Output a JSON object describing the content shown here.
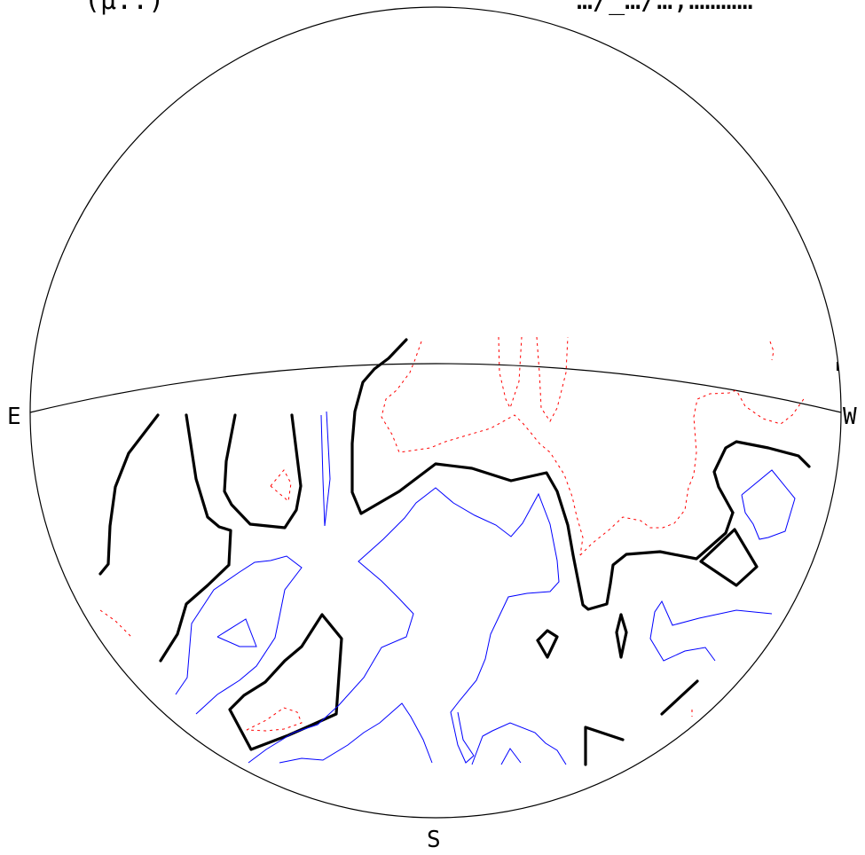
{
  "header": {
    "left_fragment": "(μ..)",
    "right_fragment": "…/_…/…,…………"
  },
  "directions": {
    "east": "E",
    "west": "W",
    "south": "S"
  },
  "colors": {
    "outline": "#000000",
    "thick_contour": "#000000",
    "thin_contour": "#0000ff",
    "dashed_contour": "#ff0000"
  }
}
